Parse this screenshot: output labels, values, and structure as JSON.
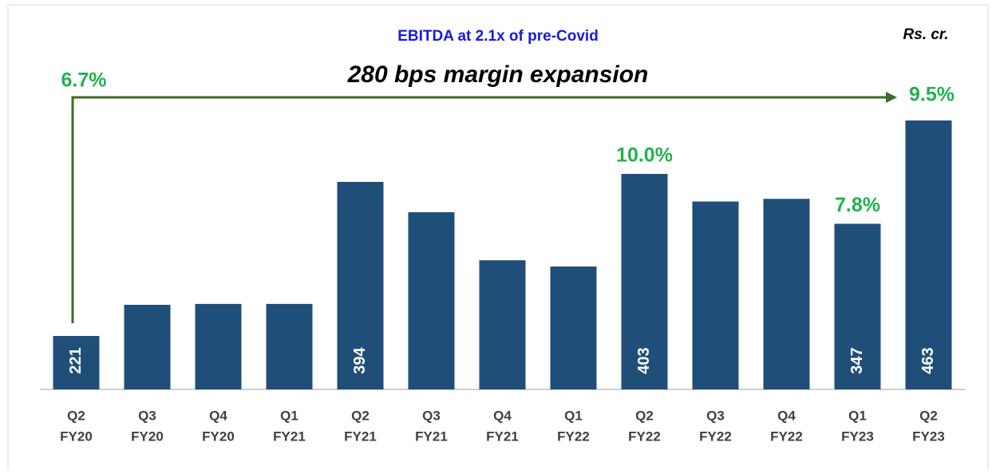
{
  "chart_data": {
    "type": "bar",
    "title": "EBITDA at 2.1x of pre-Covid",
    "unit_label": "Rs. cr.",
    "annotation": "280 bps margin expansion",
    "categories": [
      [
        "Q2",
        "FY20"
      ],
      [
        "Q3",
        "FY20"
      ],
      [
        "Q4",
        "FY20"
      ],
      [
        "Q1",
        "FY21"
      ],
      [
        "Q2",
        "FY21"
      ],
      [
        "Q3",
        "FY21"
      ],
      [
        "Q4",
        "FY21"
      ],
      [
        "Q1",
        "FY22"
      ],
      [
        "Q2",
        "FY22"
      ],
      [
        "Q3",
        "FY22"
      ],
      [
        "Q4",
        "FY22"
      ],
      [
        "Q1",
        "FY23"
      ],
      [
        "Q2",
        "FY23"
      ]
    ],
    "values": [
      221,
      256,
      257,
      257,
      394,
      360,
      306,
      299,
      403,
      372,
      375,
      347,
      463
    ],
    "value_labels": [
      "221",
      null,
      null,
      null,
      "394",
      null,
      null,
      null,
      "403",
      null,
      null,
      "347",
      "463"
    ],
    "margin_labels": [
      "6.7%",
      null,
      null,
      null,
      null,
      null,
      null,
      null,
      "10.0%",
      null,
      null,
      "7.8%",
      "9.5%"
    ],
    "color": "#1f4e79",
    "margin_color": "#22b14c",
    "arrow_color": "#3d6b28",
    "ylim": [
      161,
      480
    ]
  }
}
